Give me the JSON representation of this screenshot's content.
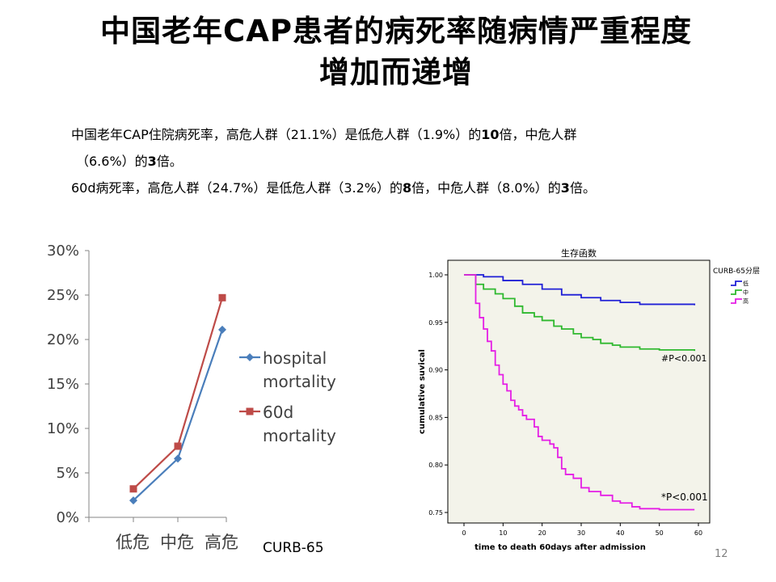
{
  "slide": {
    "title_line1": "中国老年CAP患者的病死率随病情严重程度",
    "title_line2": "增加而递增",
    "para1_a": "中国老年CAP住院病死率，高危人群（21.1%）是低危人群（1.9%）的",
    "para1_b": "10",
    "para1_c": "倍，中危人群",
    "para2_a": "（6.6%）的",
    "para2_b": "3",
    "para2_c": "倍。",
    "para3_a": "60d病死率，高危人群（24.7%）是低危人群（3.2%）的",
    "para3_b": "8",
    "para3_c": "倍，中危人群（8.0%）的",
    "para3_d": "3",
    "para3_e": "倍。",
    "page_number": "12"
  },
  "chart_data": [
    {
      "type": "line",
      "categories": [
        "低危",
        "中危",
        "高危"
      ],
      "xlabel": "CURB-65",
      "ylim": [
        0,
        30
      ],
      "y_ticks": [
        "0%",
        "5%",
        "10%",
        "15%",
        "20%",
        "25%",
        "30%"
      ],
      "legend_position": "right",
      "series": [
        {
          "name": "hospital mortality",
          "name_lines": [
            "hospital",
            "mortality"
          ],
          "values": [
            1.9,
            6.6,
            21.1
          ],
          "color": "#4a7ebb",
          "marker": "diamond"
        },
        {
          "name": "60d mortality",
          "name_lines": [
            "60d",
            "mortality"
          ],
          "values": [
            3.2,
            8.0,
            24.7
          ],
          "color": "#be4b48",
          "marker": "square"
        }
      ]
    },
    {
      "type": "line",
      "title": "生存函数",
      "xlabel": "time to death 60days after admission",
      "ylabel": "cumulative suvical",
      "xlim": [
        0,
        60
      ],
      "ylim": [
        0.75,
        1.0
      ],
      "x_ticks": [
        "0",
        "10",
        "20",
        "30",
        "40",
        "50",
        "60"
      ],
      "y_ticks": [
        "0.75",
        "0.80",
        "0.85",
        "0.90",
        "0.95",
        "1.00"
      ],
      "legend_title": "CURB-65分层",
      "legend_position": "top-right",
      "annotations": [
        "#P<0.001",
        "*P<0.001"
      ],
      "series": [
        {
          "name": "低",
          "color": "#1f1fd6",
          "points": [
            [
              0,
              1.0
            ],
            [
              5,
              0.998
            ],
            [
              10,
              0.994
            ],
            [
              15,
              0.99
            ],
            [
              20,
              0.985
            ],
            [
              25,
              0.979
            ],
            [
              30,
              0.976
            ],
            [
              35,
              0.973
            ],
            [
              40,
              0.971
            ],
            [
              45,
              0.969
            ],
            [
              50,
              0.969
            ],
            [
              55,
              0.969
            ],
            [
              59,
              0.968
            ]
          ]
        },
        {
          "name": "中",
          "color": "#2eb82e",
          "points": [
            [
              0,
              1.0
            ],
            [
              3,
              0.99
            ],
            [
              5,
              0.985
            ],
            [
              8,
              0.98
            ],
            [
              10,
              0.975
            ],
            [
              13,
              0.967
            ],
            [
              15,
              0.96
            ],
            [
              18,
              0.956
            ],
            [
              20,
              0.952
            ],
            [
              23,
              0.946
            ],
            [
              25,
              0.943
            ],
            [
              28,
              0.938
            ],
            [
              30,
              0.934
            ],
            [
              33,
              0.932
            ],
            [
              35,
              0.928
            ],
            [
              38,
              0.926
            ],
            [
              40,
              0.924
            ],
            [
              45,
              0.922
            ],
            [
              50,
              0.921
            ],
            [
              59,
              0.92
            ]
          ]
        },
        {
          "name": "高",
          "color": "#e51ee5",
          "points": [
            [
              0,
              1.0
            ],
            [
              2,
              1.0
            ],
            [
              3,
              0.97
            ],
            [
              4,
              0.955
            ],
            [
              5,
              0.943
            ],
            [
              6,
              0.93
            ],
            [
              7,
              0.92
            ],
            [
              8,
              0.905
            ],
            [
              9,
              0.895
            ],
            [
              10,
              0.885
            ],
            [
              11,
              0.878
            ],
            [
              12,
              0.868
            ],
            [
              13,
              0.862
            ],
            [
              14,
              0.858
            ],
            [
              15,
              0.852
            ],
            [
              16,
              0.848
            ],
            [
              18,
              0.84
            ],
            [
              19,
              0.83
            ],
            [
              20,
              0.826
            ],
            [
              22,
              0.822
            ],
            [
              23,
              0.818
            ],
            [
              24,
              0.808
            ],
            [
              25,
              0.796
            ],
            [
              26,
              0.79
            ],
            [
              28,
              0.786
            ],
            [
              30,
              0.776
            ],
            [
              32,
              0.772
            ],
            [
              35,
              0.768
            ],
            [
              38,
              0.762
            ],
            [
              40,
              0.76
            ],
            [
              43,
              0.756
            ],
            [
              45,
              0.754
            ],
            [
              50,
              0.753
            ],
            [
              59,
              0.753
            ]
          ]
        }
      ]
    }
  ]
}
